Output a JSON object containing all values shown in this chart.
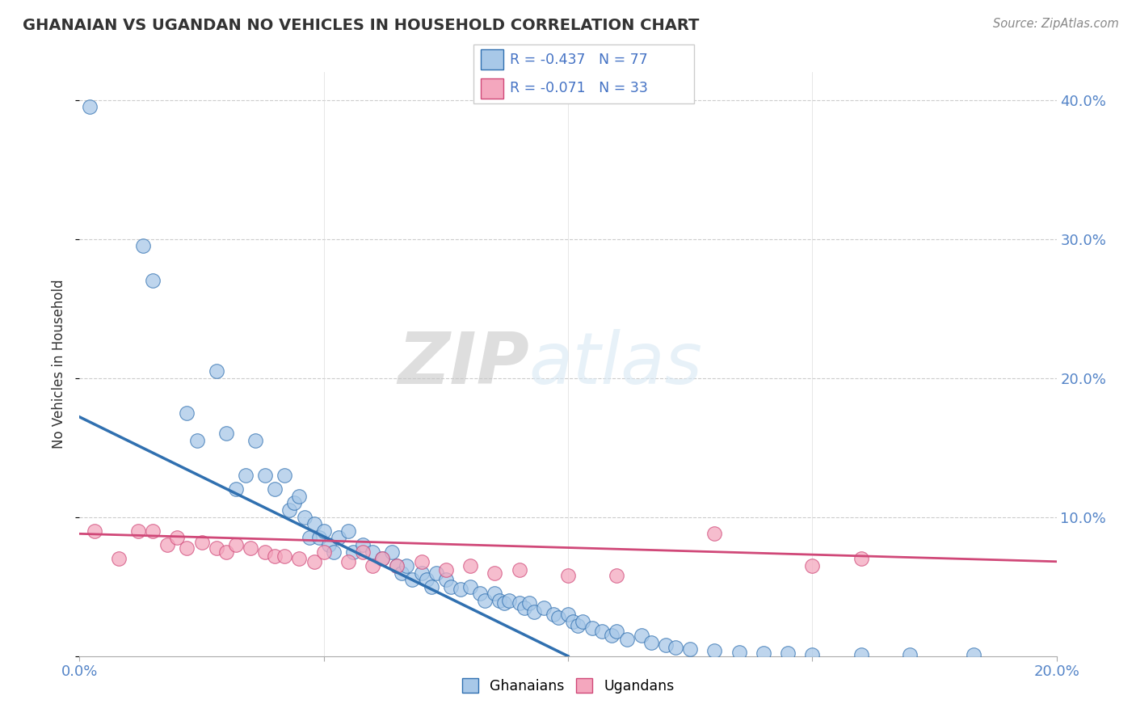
{
  "title": "GHANAIAN VS UGANDAN NO VEHICLES IN HOUSEHOLD CORRELATION CHART",
  "source": "Source: ZipAtlas.com",
  "ylabel": "No Vehicles in Household",
  "xlim": [
    0.0,
    0.2
  ],
  "ylim": [
    0.0,
    0.42
  ],
  "yticks": [
    0.0,
    0.1,
    0.2,
    0.3,
    0.4
  ],
  "ytick_labels": [
    "",
    "10.0%",
    "20.0%",
    "30.0%",
    "40.0%"
  ],
  "xticks": [
    0.0,
    0.05,
    0.1,
    0.15,
    0.2
  ],
  "xtick_labels": [
    "0.0%",
    "",
    "",
    "",
    "20.0%"
  ],
  "ghanaian_color": "#a8c8e8",
  "ugandan_color": "#f4a7be",
  "trend_ghana_color": "#3070b0",
  "trend_uganda_color": "#d04878",
  "R_ghana": -0.437,
  "N_ghana": 77,
  "R_uganda": -0.071,
  "N_uganda": 33,
  "watermark_zip": "ZIP",
  "watermark_atlas": "atlas",
  "ghana_x": [
    0.002,
    0.013,
    0.015,
    0.022,
    0.024,
    0.028,
    0.03,
    0.032,
    0.034,
    0.036,
    0.038,
    0.04,
    0.042,
    0.043,
    0.044,
    0.045,
    0.046,
    0.047,
    0.048,
    0.049,
    0.05,
    0.051,
    0.052,
    0.053,
    0.055,
    0.056,
    0.058,
    0.06,
    0.062,
    0.064,
    0.065,
    0.066,
    0.067,
    0.068,
    0.07,
    0.071,
    0.072,
    0.073,
    0.075,
    0.076,
    0.078,
    0.08,
    0.082,
    0.083,
    0.085,
    0.086,
    0.087,
    0.088,
    0.09,
    0.091,
    0.092,
    0.093,
    0.095,
    0.097,
    0.098,
    0.1,
    0.101,
    0.102,
    0.103,
    0.105,
    0.107,
    0.109,
    0.11,
    0.112,
    0.115,
    0.117,
    0.12,
    0.122,
    0.125,
    0.13,
    0.135,
    0.14,
    0.145,
    0.15,
    0.16,
    0.17,
    0.183
  ],
  "ghana_y": [
    0.395,
    0.295,
    0.27,
    0.175,
    0.155,
    0.205,
    0.16,
    0.12,
    0.13,
    0.155,
    0.13,
    0.12,
    0.13,
    0.105,
    0.11,
    0.115,
    0.1,
    0.085,
    0.095,
    0.085,
    0.09,
    0.08,
    0.075,
    0.085,
    0.09,
    0.075,
    0.08,
    0.075,
    0.07,
    0.075,
    0.065,
    0.06,
    0.065,
    0.055,
    0.06,
    0.055,
    0.05,
    0.06,
    0.055,
    0.05,
    0.048,
    0.05,
    0.045,
    0.04,
    0.045,
    0.04,
    0.038,
    0.04,
    0.038,
    0.035,
    0.038,
    0.032,
    0.035,
    0.03,
    0.028,
    0.03,
    0.025,
    0.022,
    0.025,
    0.02,
    0.018,
    0.015,
    0.018,
    0.012,
    0.015,
    0.01,
    0.008,
    0.006,
    0.005,
    0.004,
    0.003,
    0.002,
    0.002,
    0.001,
    0.001,
    0.001,
    0.001
  ],
  "uganda_x": [
    0.003,
    0.008,
    0.012,
    0.015,
    0.018,
    0.02,
    0.022,
    0.025,
    0.028,
    0.03,
    0.032,
    0.035,
    0.038,
    0.04,
    0.042,
    0.045,
    0.048,
    0.05,
    0.055,
    0.058,
    0.06,
    0.062,
    0.065,
    0.07,
    0.075,
    0.08,
    0.085,
    0.09,
    0.1,
    0.11,
    0.13,
    0.15,
    0.16
  ],
  "uganda_y": [
    0.09,
    0.07,
    0.09,
    0.09,
    0.08,
    0.085,
    0.078,
    0.082,
    0.078,
    0.075,
    0.08,
    0.078,
    0.075,
    0.072,
    0.072,
    0.07,
    0.068,
    0.075,
    0.068,
    0.075,
    0.065,
    0.07,
    0.065,
    0.068,
    0.062,
    0.065,
    0.06,
    0.062,
    0.058,
    0.058,
    0.088,
    0.065,
    0.07
  ],
  "ghana_trend_x0": 0.0,
  "ghana_trend_y0": 0.172,
  "ghana_trend_x1": 0.1,
  "ghana_trend_y1": 0.0,
  "uganda_trend_x0": 0.0,
  "uganda_trend_y0": 0.088,
  "uganda_trend_x1": 0.2,
  "uganda_trend_y1": 0.068
}
